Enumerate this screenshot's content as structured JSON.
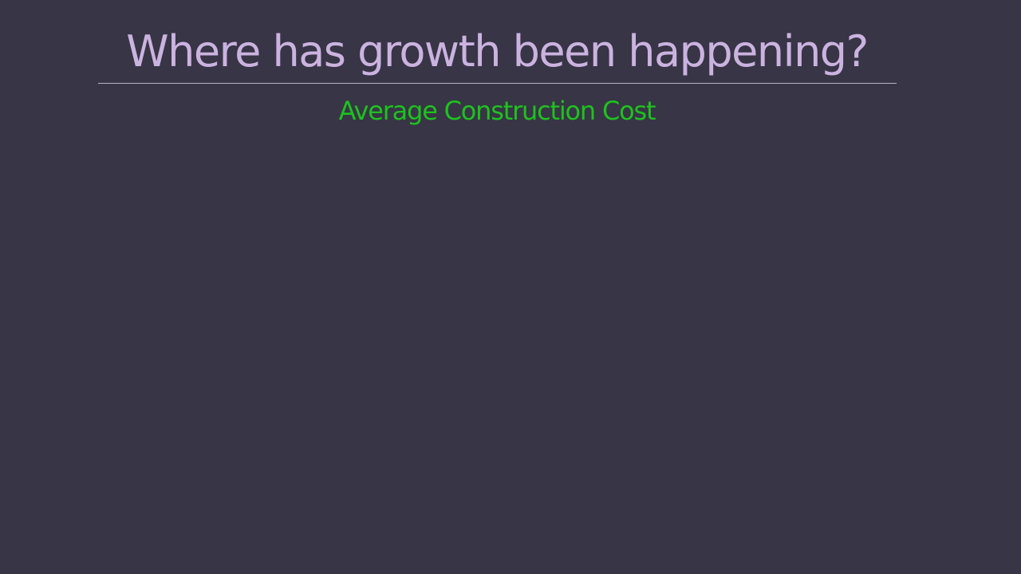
{
  "slide": {
    "title": "Where has growth been happening?",
    "subtitle": "Average Construction Cost"
  },
  "colors": {
    "background": "#383546",
    "title": "#cbb3e0",
    "subtitle": "#1dc21d",
    "rule": "#b8b3c4"
  }
}
